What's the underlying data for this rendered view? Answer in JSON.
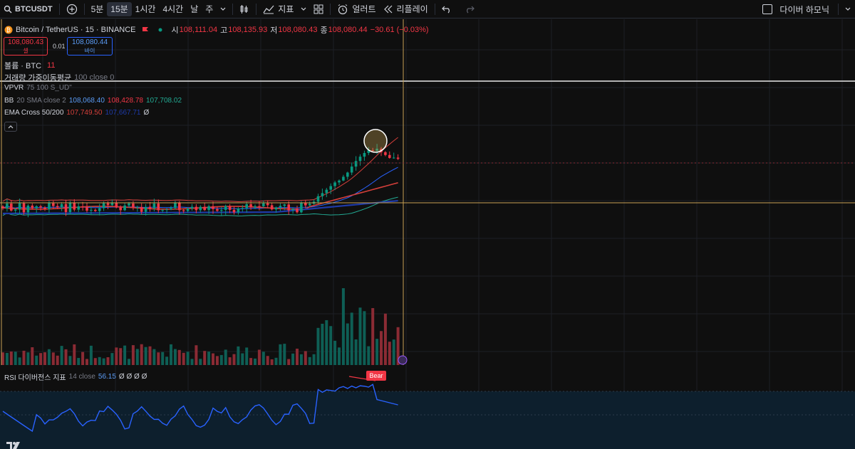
{
  "toolbar": {
    "symbol": "BTCUSDT",
    "intervals": [
      "5분",
      "15분",
      "1시간",
      "4시간",
      "날",
      "주"
    ],
    "active_interval": "15분",
    "indicators_label": "지표",
    "alert_label": "얼러트",
    "replay_label": "리플레이",
    "dark_mode_label": "다이버 하모닉"
  },
  "header": {
    "title": "Bitcoin / TetherUS · 15 · BINANCE",
    "open_label": "시",
    "open": "108,111.04",
    "high_label": "고",
    "high": "108,135.93",
    "low_label": "저",
    "low": "108,080.43",
    "close_label": "종",
    "close": "108,080.44",
    "change": "−30.61 (−0.03%)"
  },
  "trade": {
    "sell_price": "108,080.43",
    "sell_label": "셀",
    "spread": "0.01",
    "buy_price": "108,080.44",
    "buy_label": "바이"
  },
  "indicators": {
    "volume_name": "볼륨 · BTC",
    "volume_value": "11",
    "vwma_name": "거래량 가중이동평균",
    "vwma_params": "100 close 0",
    "vpvr_name": "VPVR",
    "vpvr_params": "75 100 S_UD\"",
    "bb_name": "BB",
    "bb_params": "20 SMA close 2",
    "bb_basis": "108,068.40",
    "bb_upper": "108,428.78",
    "bb_lower": "107,708.02",
    "ema_name": "EMA Cross 50/200",
    "ema_fast": "107,749.50",
    "ema_slow": "107,667.71",
    "ema_extra": "Ø"
  },
  "rsi": {
    "name": "RSI 다이버전스 지표",
    "params": "14 close",
    "value": "56.15",
    "extras": "Ø Ø Ø Ø",
    "bear_label": "Bear"
  },
  "collapse_icon": "chevron-up-icon",
  "colors": {
    "up": "#089981",
    "down": "#f23645",
    "bb": "#2962ff",
    "ema_fast": "#f23645",
    "ema_slow": "#2962ff",
    "crosshair": "#c8a254",
    "rsi_line": "#2962ff"
  }
}
